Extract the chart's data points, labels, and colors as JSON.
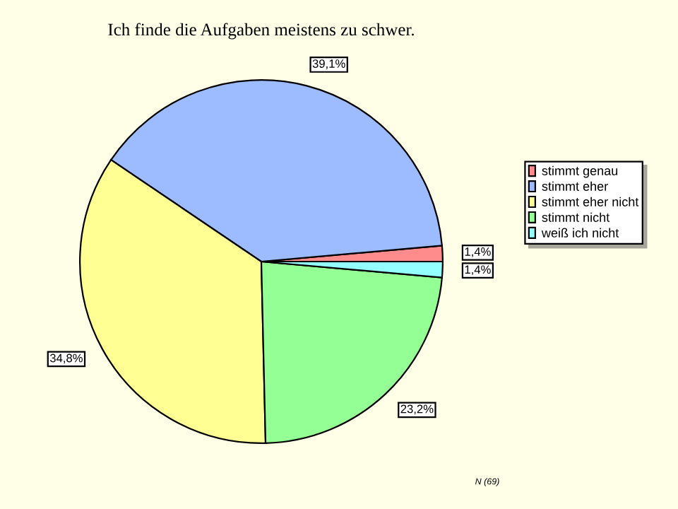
{
  "chart_data": {
    "type": "pie",
    "title": "Ich finde die Aufgaben meistens zu schwer.",
    "categories": [
      "stimmt genau",
      "stimmt eher",
      "stimmt eher nicht",
      "stimmt nicht",
      "weiß ich nicht"
    ],
    "values": [
      1.4,
      39.1,
      34.8,
      23.2,
      1.4
    ],
    "colors": [
      "#ff8c8c",
      "#9cbcff",
      "#ffff94",
      "#94ff94",
      "#94ffff"
    ],
    "value_labels": [
      "1,4%",
      "39,1%",
      "34,8%",
      "23,2%",
      "1,4%"
    ],
    "legend": "right",
    "annotations": [
      "N (69)"
    ]
  }
}
